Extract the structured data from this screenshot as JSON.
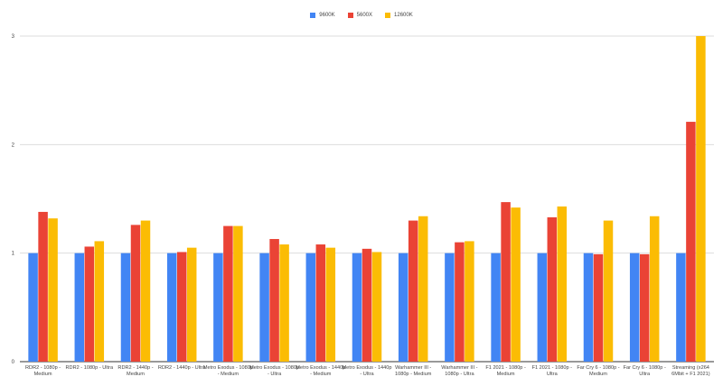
{
  "chart_data": {
    "type": "bar",
    "categories": [
      [
        "RDR2 - 1080p -",
        "Medium"
      ],
      [
        "RDR2 - 1080p - Ultra"
      ],
      [
        "RDR2 - 1440p -",
        "Medium"
      ],
      [
        "RDR2 - 1440p - Ultra"
      ],
      [
        "Metro Exodus - 1080p",
        "- Medium"
      ],
      [
        "Metro Exodus - 1080p",
        "- Ultra"
      ],
      [
        "Metro Exodus - 1440p",
        "- Medium"
      ],
      [
        "Metro Exodus - 1440p",
        "- Ultra"
      ],
      [
        "Warhammer III -",
        "1080p - Medium"
      ],
      [
        "Warhammer III -",
        "1080p - Ultra"
      ],
      [
        "F1 2021 - 1080p -",
        "Medium"
      ],
      [
        "F1 2021 - 1080p -",
        "Ultra"
      ],
      [
        "Far Cry 6 - 1080p -",
        "Medium"
      ],
      [
        "Far Cry 6 - 1080p -",
        "Ultra"
      ],
      [
        "Streaming (x264",
        "6Mbit + F1 2021)"
      ]
    ],
    "series": [
      {
        "name": "9600K",
        "color": "#4285f4",
        "values": [
          1,
          1,
          1,
          1,
          1,
          1,
          1,
          1,
          1,
          1,
          1,
          1,
          1,
          1,
          1
        ]
      },
      {
        "name": "5600X",
        "color": "#ea4335",
        "values": [
          1.38,
          1.06,
          1.26,
          1.01,
          1.25,
          1.13,
          1.08,
          1.04,
          1.3,
          1.1,
          1.47,
          1.33,
          0.99,
          0.99,
          2.21
        ]
      },
      {
        "name": "12600K",
        "color": "#fbbc04",
        "values": [
          1.32,
          1.11,
          1.3,
          1.05,
          1.25,
          1.08,
          1.05,
          1.01,
          1.34,
          1.11,
          1.42,
          1.43,
          1.3,
          1.34,
          3.0
        ]
      }
    ],
    "yticks": [
      "0",
      "1",
      "2",
      "3"
    ],
    "ylim": [
      0,
      3
    ],
    "grid": true,
    "legend_position": "top-center"
  }
}
